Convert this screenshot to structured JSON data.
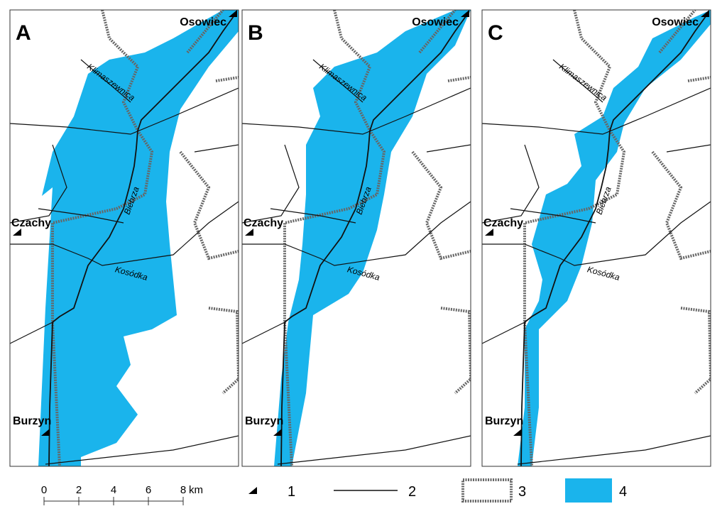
{
  "panels": [
    {
      "label": "A",
      "places": [
        "Osowiec",
        "Czachy",
        "Burzyn"
      ],
      "rivers": [
        "Klimaszewnica",
        "Biebrza",
        "Kosódka"
      ]
    },
    {
      "label": "B",
      "places": [
        "Osowiec",
        "Czachy",
        "Burzyn"
      ],
      "rivers": [
        "Klimaszewnica",
        "Biebrza",
        "Kosódka"
      ]
    },
    {
      "label": "C",
      "places": [
        "Osowiec",
        "Czachy",
        "Burzyn"
      ],
      "rivers": [
        "Klimaszewnica",
        "Biebrza",
        "Kosódka"
      ]
    }
  ],
  "scale_bar": {
    "ticks": [
      0,
      2,
      4,
      6,
      8
    ],
    "unit": "km"
  },
  "legend": [
    {
      "key": "1"
    },
    {
      "key": "2"
    },
    {
      "key": "3"
    },
    {
      "key": "4"
    }
  ]
}
